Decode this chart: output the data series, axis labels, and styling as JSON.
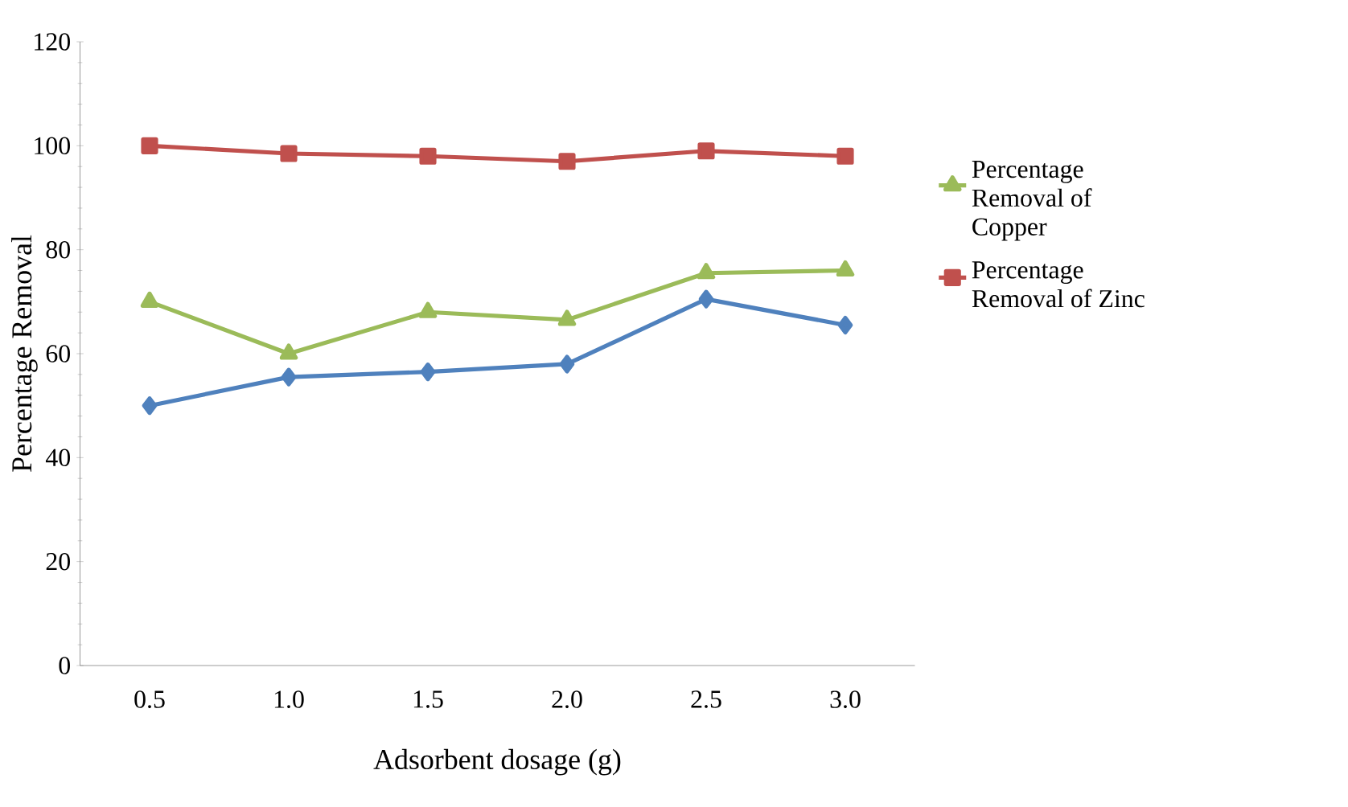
{
  "chart_data": {
    "type": "line",
    "xlabel": "Adsorbent dosage (g)",
    "ylabel": "Percentage Removal",
    "categories": [
      "0.5",
      "1.0",
      "1.5",
      "2.0",
      "2.5",
      "3.0"
    ],
    "series": [
      {
        "color": "#4f81bd",
        "marker": "diamond",
        "values": [
          50,
          55.5,
          56.5,
          58,
          70.5,
          65.5
        ]
      },
      {
        "name": "Percentage Removal of Copper",
        "color": "#9bbb59",
        "marker": "triangle",
        "values": [
          70,
          60,
          68,
          66.5,
          75.5,
          76
        ]
      },
      {
        "name": "Percentage Removal of Zinc",
        "color": "#c0504d",
        "marker": "square",
        "values": [
          100,
          98.5,
          98,
          97,
          99,
          98
        ]
      }
    ],
    "ylim": [
      0,
      120
    ],
    "yticks": [
      0,
      20,
      40,
      60,
      80,
      100,
      120
    ],
    "legend": "right"
  }
}
